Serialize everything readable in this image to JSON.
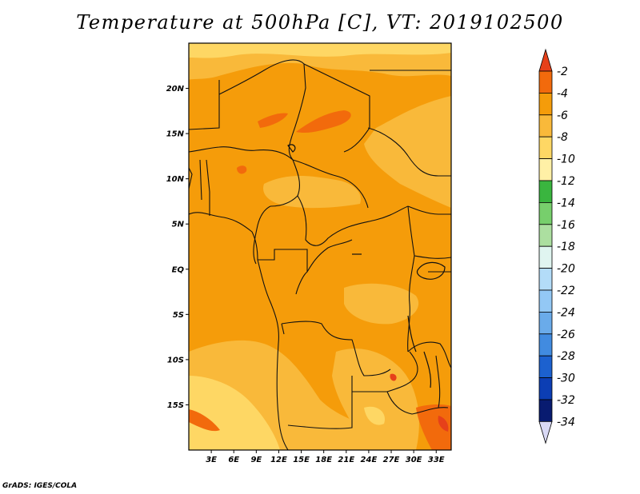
{
  "title": "Temperature at 500hPa [C], VT: 2019102500",
  "credit": "GrADS: IGES/COLA",
  "map": {
    "lon_range": [
      0,
      35
    ],
    "lat_range": [
      -20,
      25
    ],
    "lat_ticks": [
      {
        "value": 20,
        "label": "20N"
      },
      {
        "value": 15,
        "label": "15N"
      },
      {
        "value": 10,
        "label": "10N"
      },
      {
        "value": 5,
        "label": "5N"
      },
      {
        "value": 0,
        "label": "EQ"
      },
      {
        "value": -5,
        "label": "5S"
      },
      {
        "value": -10,
        "label": "10S"
      },
      {
        "value": -15,
        "label": "15S"
      }
    ],
    "lon_ticks": [
      {
        "value": 3,
        "label": "3E"
      },
      {
        "value": 6,
        "label": "6E"
      },
      {
        "value": 9,
        "label": "9E"
      },
      {
        "value": 12,
        "label": "12E"
      },
      {
        "value": 15,
        "label": "15E"
      },
      {
        "value": 18,
        "label": "18E"
      },
      {
        "value": 21,
        "label": "21E"
      },
      {
        "value": 24,
        "label": "24E"
      },
      {
        "value": 27,
        "label": "27E"
      },
      {
        "value": 30,
        "label": "30E"
      },
      {
        "value": 33,
        "label": "33E"
      }
    ]
  },
  "colorbar": {
    "labels": [
      "-2",
      "-4",
      "-6",
      "-8",
      "-10",
      "-12",
      "-14",
      "-16",
      "-18",
      "-20",
      "-22",
      "-24",
      "-26",
      "-28",
      "-30",
      "-32",
      "-34"
    ],
    "colors": [
      "#e6401a",
      "#f26a0c",
      "#f59c0a",
      "#f9b93a",
      "#fed764",
      "#fff0a6",
      "#3ab53f",
      "#77cf6c",
      "#acdfa0",
      "#e0f5f0",
      "#b3dcf8",
      "#93c8f5",
      "#6aabea",
      "#418be0",
      "#1c61cf",
      "#0c3eb4",
      "#081b70",
      "#d9d9f5"
    ]
  }
}
